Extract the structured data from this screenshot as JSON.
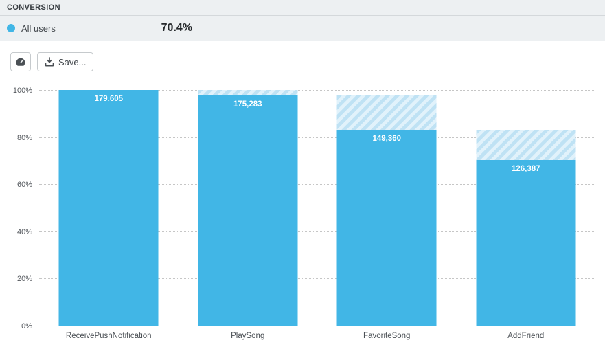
{
  "header": {
    "title": "CONVERSION"
  },
  "legend": {
    "series_label": "All users",
    "conversion_value": "70.4%"
  },
  "toolbar": {
    "dashboard_button_icon": "gauge-icon",
    "save_label": "Save...",
    "save_button_icon": "download-icon"
  },
  "colors": {
    "bar": "#41b6e6",
    "legend_dot": "#41b6e6",
    "hatch_stripe": "#bfe2f4",
    "hatch_background": "#e1f2fb",
    "header_background": "#edf0f2",
    "border": "#d4d8db",
    "gridline": "#c6c6c6"
  },
  "chart_data": {
    "type": "bar",
    "subtype": "funnel",
    "title": "CONVERSION",
    "series": [
      {
        "name": "All users",
        "values": [
          179605,
          175283,
          149360,
          126387
        ]
      }
    ],
    "categories": [
      "ReceivePushNotification",
      "PlaySong",
      "FavoriteSong",
      "AddFriend"
    ],
    "values": [
      179605,
      175283,
      149360,
      126387
    ],
    "value_labels": [
      "179,605",
      "175,283",
      "149,360",
      "126,387"
    ],
    "percents_of_first": [
      100,
      97.6,
      83.2,
      70.4
    ],
    "overall_conversion": "70.4%",
    "ylim": [
      0,
      100
    ],
    "yticks": [
      0,
      20,
      40,
      60,
      80,
      100
    ],
    "ytick_labels": [
      "0%",
      "20%",
      "40%",
      "60%",
      "80%",
      "100%"
    ],
    "xlabel": "",
    "ylabel": "",
    "grid": "dotted-horizontal",
    "legend_position": "top-left-header",
    "hatch_meaning": "drop-off from previous funnel step"
  }
}
